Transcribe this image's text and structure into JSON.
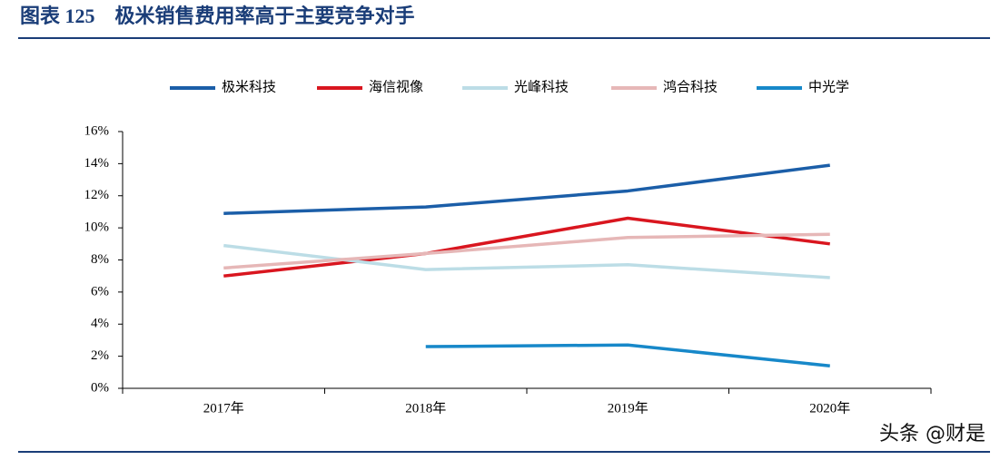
{
  "chart_data": {
    "type": "line",
    "title": "图表 125　极米销售费用率高于主要竞争对手",
    "watermark": "头条 @财是",
    "categories": [
      "2017年",
      "2018年",
      "2019年",
      "2020年"
    ],
    "series": [
      {
        "name": "极米科技",
        "color": "#1b5ea8",
        "values": [
          10.9,
          11.3,
          12.3,
          13.9
        ]
      },
      {
        "name": "海信视像",
        "color": "#d9161f",
        "values": [
          7.0,
          8.4,
          10.6,
          9.0
        ]
      },
      {
        "name": "光峰科技",
        "color": "#bcdde6",
        "values": [
          8.9,
          7.4,
          7.7,
          6.9
        ]
      },
      {
        "name": "鸿合科技",
        "color": "#e6b7b7",
        "values": [
          7.5,
          8.4,
          9.4,
          9.6
        ]
      },
      {
        "name": "中光学",
        "color": "#1788c9",
        "values": [
          null,
          2.6,
          2.7,
          1.4
        ]
      }
    ],
    "ylim": [
      0,
      16
    ],
    "yticks": [
      {
        "value": 0,
        "label": "0%"
      },
      {
        "value": 2,
        "label": "2%"
      },
      {
        "value": 4,
        "label": "4%"
      },
      {
        "value": 6,
        "label": "6%"
      },
      {
        "value": 8,
        "label": "8%"
      },
      {
        "value": 10,
        "label": "10%"
      },
      {
        "value": 12,
        "label": "12%"
      },
      {
        "value": 14,
        "label": "14%"
      },
      {
        "value": 16,
        "label": "16%"
      }
    ],
    "legend": "top"
  }
}
